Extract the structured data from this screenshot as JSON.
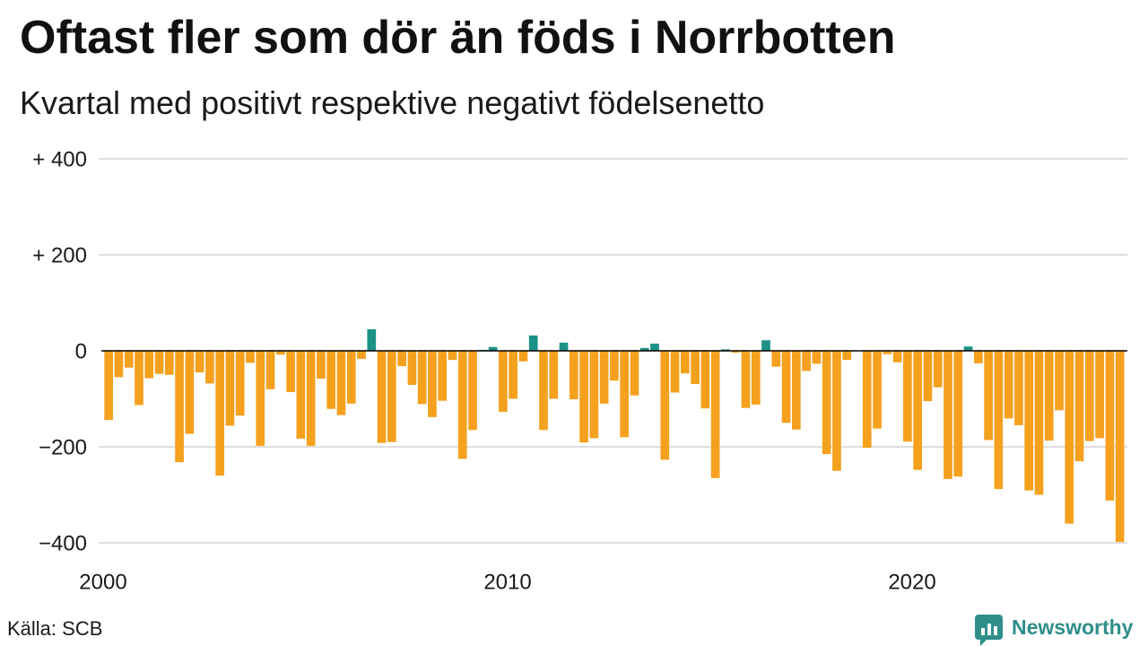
{
  "footer": {
    "source": "Källa: SCB",
    "brand_name": "Newsworthy",
    "brand_icon": "newsworthy-logo-icon"
  },
  "colors": {
    "positive": "#1b9285",
    "negative": "#f5a11e",
    "grid": "#dedede",
    "zero_line": "#000000",
    "brand": "#2f8e8a"
  },
  "chart_data": {
    "type": "bar",
    "title": "Oftast fler som dör än föds i Norrbotten",
    "subtitle": "Kvartal med positivt respektive negativt födelsenetto",
    "xlabel": "",
    "ylabel": "",
    "xlim": [
      2000,
      2025.25
    ],
    "ylim": [
      -400,
      400
    ],
    "grid": true,
    "y_ticks": [
      {
        "value": 400,
        "label": "+ 400"
      },
      {
        "value": 200,
        "label": "+ 200"
      },
      {
        "value": 0,
        "label": "0"
      },
      {
        "value": -200,
        "label": "−200"
      },
      {
        "value": -400,
        "label": "−400"
      }
    ],
    "x_ticks": [
      {
        "value": 2000,
        "label": "2000"
      },
      {
        "value": 2010,
        "label": "2010"
      },
      {
        "value": 2020,
        "label": "2020"
      }
    ],
    "x": [
      2000,
      2000.25,
      2000.5,
      2000.75,
      2001,
      2001.25,
      2001.5,
      2001.75,
      2002,
      2002.25,
      2002.5,
      2002.75,
      2003,
      2003.25,
      2003.5,
      2003.75,
      2004,
      2004.25,
      2004.5,
      2004.75,
      2005,
      2005.25,
      2005.5,
      2005.75,
      2006,
      2006.25,
      2006.5,
      2006.75,
      2007,
      2007.25,
      2007.5,
      2007.75,
      2008,
      2008.25,
      2008.5,
      2008.75,
      2009,
      2009.25,
      2009.5,
      2009.75,
      2010,
      2010.25,
      2010.5,
      2010.75,
      2011,
      2011.25,
      2011.5,
      2011.75,
      2012,
      2012.25,
      2012.5,
      2012.75,
      2013,
      2013.25,
      2013.5,
      2013.75,
      2014,
      2014.25,
      2014.5,
      2014.75,
      2015,
      2015.25,
      2015.5,
      2015.75,
      2016,
      2016.25,
      2016.5,
      2016.75,
      2017,
      2017.25,
      2017.5,
      2017.75,
      2018,
      2018.25,
      2018.5,
      2018.75,
      2019,
      2019.25,
      2019.5,
      2019.75,
      2020,
      2020.25,
      2020.5,
      2020.75,
      2021,
      2021.25,
      2021.5,
      2021.75,
      2022,
      2022.25,
      2022.5,
      2022.75,
      2023,
      2023.25,
      2023.5,
      2023.75,
      2024,
      2024.25,
      2024.5,
      2024.75,
      2025
    ],
    "values": [
      -144,
      -55,
      -35,
      -113,
      -57,
      -48,
      -50,
      -232,
      -173,
      -45,
      -68,
      -260,
      -156,
      -135,
      -25,
      -198,
      -80,
      -8,
      -86,
      -183,
      -198,
      -58,
      -121,
      -134,
      -110,
      -17,
      45,
      -192,
      -190,
      -32,
      -71,
      -111,
      -138,
      -104,
      -19,
      -225,
      -165,
      2,
      8,
      -127,
      -100,
      -22,
      32,
      -165,
      -100,
      17,
      -101,
      -191,
      -182,
      -110,
      -62,
      -180,
      -93,
      6,
      15,
      -227,
      -87,
      -47,
      -69,
      -120,
      -265,
      3,
      -4,
      -119,
      -112,
      22,
      -33,
      -150,
      -164,
      -42,
      -27,
      -215,
      -250,
      -19,
      -1,
      -202,
      -162,
      -7,
      -24,
      -189,
      -248,
      -105,
      -76,
      -267,
      -262,
      9,
      -26,
      -186,
      -288,
      -141,
      -155,
      -291,
      -300,
      -187,
      -124,
      -360,
      -230,
      -188,
      -182,
      -312,
      -398
    ]
  }
}
